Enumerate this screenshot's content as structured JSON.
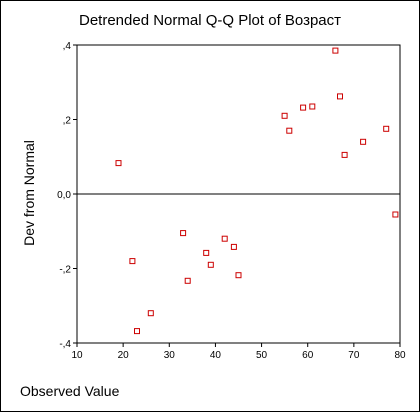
{
  "chart_data": {
    "type": "scatter",
    "title": "Detrended Normal Q-Q Plot of Возраст",
    "xlabel": "Observed Value",
    "ylabel": "Dev from Normal",
    "xlim": [
      10,
      80
    ],
    "ylim": [
      -0.4,
      0.4
    ],
    "x_ticks": [
      10,
      20,
      30,
      40,
      50,
      60,
      70,
      80
    ],
    "x_tick_labels": [
      "10",
      "20",
      "30",
      "40",
      "50",
      "60",
      "70",
      "80"
    ],
    "y_ticks": [
      0.4,
      0.2,
      0.0,
      -0.2,
      -0.4
    ],
    "y_tick_labels": [
      ",4",
      ",2",
      "0,0",
      "-,2",
      "-,4"
    ],
    "reference_line": 0,
    "grid": false,
    "legend": "none",
    "marker": "hollow-square",
    "marker_color": "#cc0000",
    "points": [
      {
        "x": 19,
        "y": 0.083
      },
      {
        "x": 22,
        "y": -0.18
      },
      {
        "x": 23,
        "y": -0.368
      },
      {
        "x": 26,
        "y": -0.32
      },
      {
        "x": 33,
        "y": -0.105
      },
      {
        "x": 34,
        "y": -0.233
      },
      {
        "x": 38,
        "y": -0.158
      },
      {
        "x": 39,
        "y": -0.19
      },
      {
        "x": 42,
        "y": -0.12
      },
      {
        "x": 44,
        "y": -0.142
      },
      {
        "x": 45,
        "y": -0.218
      },
      {
        "x": 55,
        "y": 0.21
      },
      {
        "x": 56,
        "y": 0.17
      },
      {
        "x": 59,
        "y": 0.232
      },
      {
        "x": 61,
        "y": 0.235
      },
      {
        "x": 66,
        "y": 0.385
      },
      {
        "x": 67,
        "y": 0.262
      },
      {
        "x": 68,
        "y": 0.105
      },
      {
        "x": 72,
        "y": 0.14
      },
      {
        "x": 77,
        "y": 0.175
      },
      {
        "x": 79,
        "y": -0.055
      }
    ]
  }
}
